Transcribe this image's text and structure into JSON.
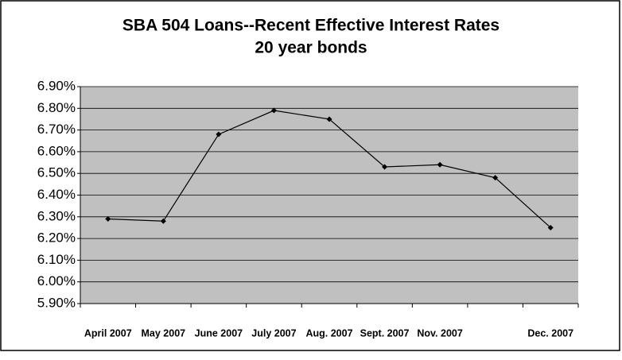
{
  "chart_data": {
    "type": "line",
    "title": "SBA 504 Loans--Recent Effective Interest Rates",
    "subtitle": "20 year bonds",
    "categories": [
      "April 2007",
      "May 2007",
      "June 2007",
      "July 2007",
      "Aug. 2007",
      "Sept. 2007",
      "Nov. 2007",
      null,
      "Dec. 2007"
    ],
    "values": [
      6.29,
      6.28,
      6.68,
      6.79,
      6.75,
      6.53,
      6.54,
      6.48,
      6.25
    ],
    "color": "#000000",
    "ylim": [
      5.9,
      6.9
    ],
    "yticks": [
      {
        "value": 5.9,
        "label": "5.90%"
      },
      {
        "value": 6.0,
        "label": "6.00%"
      },
      {
        "value": 6.1,
        "label": "6.10%"
      },
      {
        "value": 6.2,
        "label": "6.20%"
      },
      {
        "value": 6.3,
        "label": "6.30%"
      },
      {
        "value": 6.4,
        "label": "6.40%"
      },
      {
        "value": 6.5,
        "label": "6.50%"
      },
      {
        "value": 6.6,
        "label": "6.60%"
      },
      {
        "value": 6.7,
        "label": "6.70%"
      },
      {
        "value": 6.8,
        "label": "6.80%"
      },
      {
        "value": 6.9,
        "label": "6.90%"
      }
    ],
    "grid": true
  }
}
